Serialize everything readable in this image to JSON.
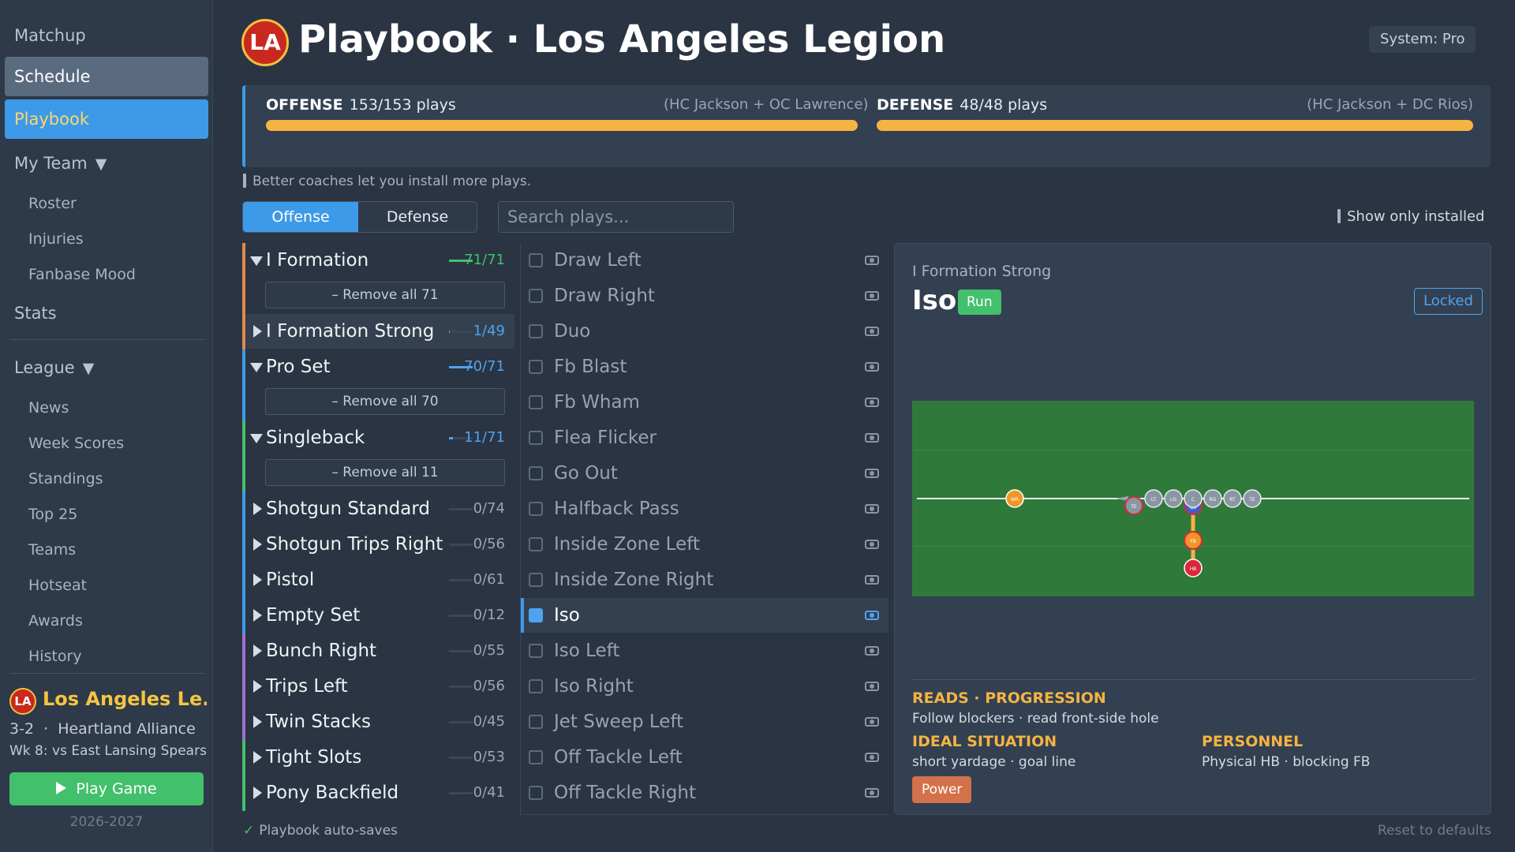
{
  "sidebar": {
    "nav": {
      "matchup": "Matchup",
      "schedule": "Schedule",
      "playbook": "Playbook",
      "my_team": "My Team",
      "stats": "Stats",
      "league": "League"
    },
    "my_team_items": [
      "Roster",
      "Injuries",
      "Fanbase Mood"
    ],
    "league_items": [
      "News",
      "Week Scores",
      "Standings",
      "Top 25",
      "Teams",
      "Hotseat",
      "Awards",
      "History"
    ],
    "team": {
      "badge": "LA",
      "name": "Los Angeles Le...",
      "record": "3-2",
      "separator": "·",
      "conference": "Heartland Alliance",
      "next_game": "Wk 8: vs East Lansing Spears"
    },
    "play_button": "Play Game",
    "season": "2026-2027"
  },
  "header": {
    "logo": "LA",
    "title": "Playbook · Los Angeles Legion",
    "system": "System: Pro"
  },
  "capacity": {
    "offense": {
      "label": "OFFENSE",
      "value": "153/153 plays",
      "coaches": "(HC Jackson + OC Lawrence)",
      "fill": 1.0
    },
    "defense": {
      "label": "DEFENSE",
      "value": "48/48 plays",
      "coaches": "(HC Jackson + DC Rios)",
      "fill": 1.0
    },
    "hint": "Better coaches let you install more plays."
  },
  "tabs": {
    "offense": "Offense",
    "defense": "Defense"
  },
  "search": {
    "placeholder": "Search plays..."
  },
  "show_installed": "Show only installed",
  "formations": [
    {
      "name": "I Formation",
      "count": "71/71",
      "installed": 71,
      "total": 71,
      "expanded": true,
      "remove": "– Remove all 71",
      "count_color": "#43c06b",
      "bar_color": "#e08a4a"
    },
    {
      "name": "I Formation Strong",
      "count": "1/49",
      "installed": 1,
      "total": 49,
      "expanded": false,
      "selected": true,
      "count_color": "#4fa3ee",
      "bar_color": "#e08a4a"
    },
    {
      "name": "Pro Set",
      "count": "70/71",
      "installed": 70,
      "total": 71,
      "expanded": true,
      "remove": "– Remove all 70",
      "count_color": "#4fa3ee",
      "bar_color": "#3d9ae8"
    },
    {
      "name": "Singleback",
      "count": "11/71",
      "installed": 11,
      "total": 71,
      "expanded": true,
      "remove": "– Remove all 11",
      "count_color": "#4fa3ee",
      "bar_color": "#43c06b"
    },
    {
      "name": "Shotgun Standard",
      "count": "0/74",
      "installed": 0,
      "total": 74,
      "expanded": false,
      "count_color": "#9aa6b3",
      "bar_color": "#3d9ae8"
    },
    {
      "name": "Shotgun Trips Right",
      "count": "0/56",
      "installed": 0,
      "total": 56,
      "expanded": false,
      "count_color": "#9aa6b3",
      "bar_color": "#3d9ae8"
    },
    {
      "name": "Pistol",
      "count": "0/61",
      "installed": 0,
      "total": 61,
      "expanded": false,
      "count_color": "#9aa6b3",
      "bar_color": "#3d9ae8"
    },
    {
      "name": "Empty Set",
      "count": "0/12",
      "installed": 0,
      "total": 12,
      "expanded": false,
      "count_color": "#9aa6b3",
      "bar_color": "#3d9ae8"
    },
    {
      "name": "Bunch Right",
      "count": "0/55",
      "installed": 0,
      "total": 55,
      "expanded": false,
      "count_color": "#9aa6b3",
      "bar_color": "#a070d0"
    },
    {
      "name": "Trips Left",
      "count": "0/56",
      "installed": 0,
      "total": 56,
      "expanded": false,
      "count_color": "#9aa6b3",
      "bar_color": "#a070d0"
    },
    {
      "name": "Twin Stacks",
      "count": "0/45",
      "installed": 0,
      "total": 45,
      "expanded": false,
      "count_color": "#9aa6b3",
      "bar_color": "#a070d0"
    },
    {
      "name": "Tight Slots",
      "count": "0/53",
      "installed": 0,
      "total": 53,
      "expanded": false,
      "count_color": "#9aa6b3",
      "bar_color": "#43c06b"
    },
    {
      "name": "Pony Backfield",
      "count": "0/41",
      "installed": 0,
      "total": 41,
      "expanded": false,
      "count_color": "#9aa6b3",
      "bar_color": "#43c06b"
    }
  ],
  "plays": [
    {
      "name": "Draw Left",
      "checked": false
    },
    {
      "name": "Draw Right",
      "checked": false
    },
    {
      "name": "Duo",
      "checked": false
    },
    {
      "name": "Fb Blast",
      "checked": false
    },
    {
      "name": "Fb Wham",
      "checked": false
    },
    {
      "name": "Flea Flicker",
      "checked": false
    },
    {
      "name": "Go Out",
      "checked": false
    },
    {
      "name": "Halfback Pass",
      "checked": false
    },
    {
      "name": "Inside Zone Left",
      "checked": false
    },
    {
      "name": "Inside Zone Right",
      "checked": false
    },
    {
      "name": "Iso",
      "checked": true,
      "selected": true
    },
    {
      "name": "Iso Left",
      "checked": false
    },
    {
      "name": "Iso Right",
      "checked": false
    },
    {
      "name": "Jet Sweep Left",
      "checked": false
    },
    {
      "name": "Off Tackle Left",
      "checked": false
    },
    {
      "name": "Off Tackle Right",
      "checked": false
    }
  ],
  "detail": {
    "formation": "I Formation Strong",
    "play": "Iso",
    "type": "Run",
    "lock": "Locked",
    "diagram_labels": {
      "wr": "WR",
      "te_left": "TE",
      "lt": "LT",
      "lg": "LG",
      "c": "C",
      "rg": "RG",
      "rt": "RT",
      "te_right": "TE",
      "qb": "QB",
      "fb": "FB",
      "hb": "HB"
    },
    "reads_title": "READS · PROGRESSION",
    "reads": "Follow blockers · read front-side hole",
    "ideal_title": "IDEAL SITUATION",
    "ideal": "short yardage · goal line",
    "personnel_title": "PERSONNEL",
    "personnel": "Physical HB · blocking FB",
    "concept": "Power"
  },
  "footer": {
    "autosave": "Playbook auto-saves",
    "reset": "Reset to defaults"
  },
  "colors": {
    "accent": "#3d9ae8",
    "installed": "#43c06b",
    "gold": "#f5b343",
    "field": "#2f7a3a"
  }
}
